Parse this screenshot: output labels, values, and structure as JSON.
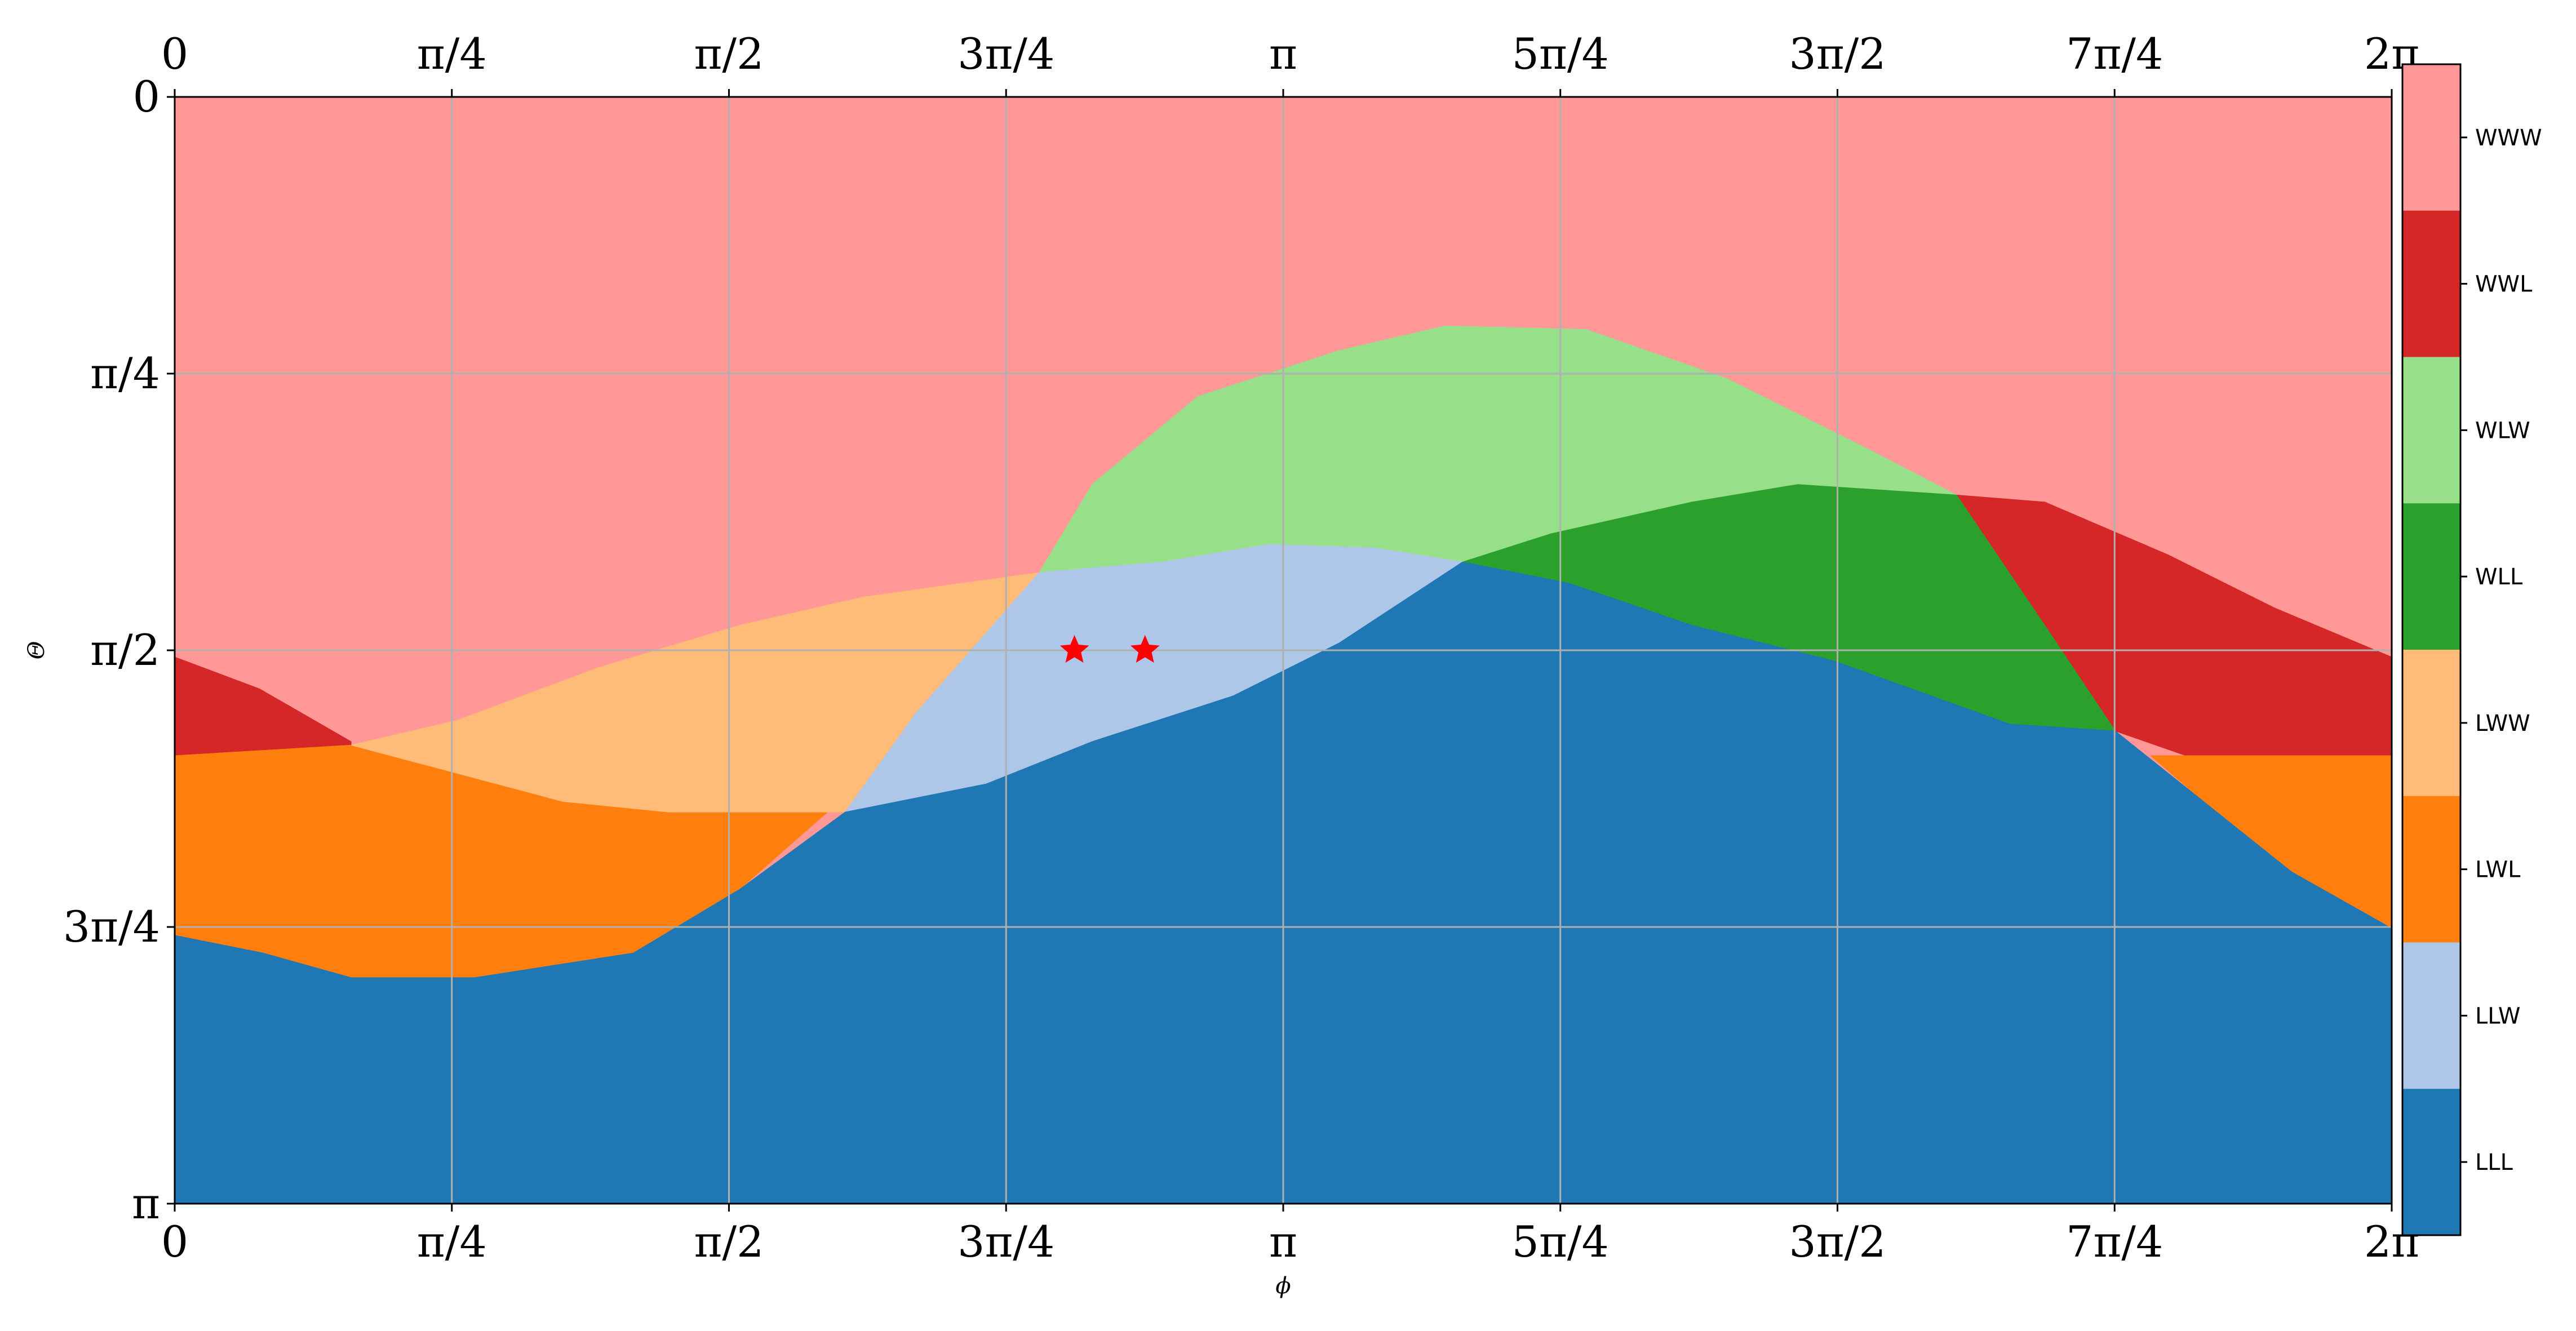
{
  "chart_data": {
    "type": "heatmap",
    "title": "",
    "xlabel": "ϕ",
    "ylabel": "Θ",
    "xlim": [
      0,
      6.2832
    ],
    "ylim": [
      0,
      3.1416
    ],
    "y_inverted": true,
    "grid": true,
    "x_ticks": [
      {
        "value": 0,
        "label": "0"
      },
      {
        "value": 0.7854,
        "label": "π/4"
      },
      {
        "value": 1.5708,
        "label": "π/2"
      },
      {
        "value": 2.3562,
        "label": "3π/4"
      },
      {
        "value": 3.1416,
        "label": "π"
      },
      {
        "value": 3.927,
        "label": "5π/4"
      },
      {
        "value": 4.7124,
        "label": "3π/2"
      },
      {
        "value": 5.4978,
        "label": "7π/4"
      },
      {
        "value": 6.2832,
        "label": "2π"
      }
    ],
    "y_ticks": [
      {
        "value": 0,
        "label": "0"
      },
      {
        "value": 0.7854,
        "label": "π/4"
      },
      {
        "value": 1.5708,
        "label": "π/2"
      },
      {
        "value": 2.3562,
        "label": "3π/4"
      },
      {
        "value": 3.1416,
        "label": "π"
      }
    ],
    "categories": [
      {
        "label": "WWW",
        "color": "#ff9896"
      },
      {
        "label": "WWL",
        "color": "#d62728"
      },
      {
        "label": "WLW",
        "color": "#98df8a"
      },
      {
        "label": "WLL",
        "color": "#2ca02c"
      },
      {
        "label": "LWW",
        "color": "#ffbb78"
      },
      {
        "label": "LWL",
        "color": "#ff7f0e"
      },
      {
        "label": "LLW",
        "color": "#aec7e8"
      },
      {
        "label": "LLL",
        "color": "#1f77b4"
      }
    ],
    "regions": [
      {
        "category": "WWW",
        "polygon": [
          [
            0,
            0
          ],
          [
            6.2832,
            0
          ],
          [
            6.2832,
            3.1416
          ],
          [
            0,
            3.1416
          ]
        ]
      },
      {
        "category": "WWL",
        "polygon": [
          [
            0,
            1.59
          ],
          [
            0.24,
            1.68
          ],
          [
            0.5,
            1.83
          ],
          [
            0.5,
            1.87
          ],
          [
            0,
            1.87
          ]
        ]
      },
      {
        "category": "WWL",
        "polygon": [
          [
            5.05,
            1.13
          ],
          [
            5.3,
            1.15
          ],
          [
            5.65,
            1.3
          ],
          [
            5.95,
            1.45
          ],
          [
            6.2832,
            1.59
          ],
          [
            6.2832,
            1.87
          ],
          [
            5.7,
            1.87
          ],
          [
            5.5,
            1.8
          ],
          [
            5.3,
            1.5
          ]
        ]
      },
      {
        "category": "LWL",
        "polygon": [
          [
            0,
            1.87
          ],
          [
            0.5,
            1.84
          ],
          [
            0.8,
            1.92
          ],
          [
            1.1,
            2.0
          ],
          [
            1.4,
            2.03
          ],
          [
            1.85,
            2.03
          ],
          [
            1.6,
            2.25
          ],
          [
            1.3,
            2.43
          ],
          [
            0.85,
            2.5
          ],
          [
            0.5,
            2.5
          ],
          [
            0.25,
            2.43
          ],
          [
            0,
            2.38
          ]
        ]
      },
      {
        "category": "LWL",
        "polygon": [
          [
            5.6,
            1.87
          ],
          [
            6.2832,
            1.87
          ],
          [
            6.2832,
            2.36
          ],
          [
            6.0,
            2.2
          ],
          [
            5.75,
            2.0
          ]
        ]
      },
      {
        "category": "LWW",
        "polygon": [
          [
            0.5,
            1.84
          ],
          [
            0.8,
            1.77
          ],
          [
            1.2,
            1.62
          ],
          [
            1.6,
            1.5
          ],
          [
            1.95,
            1.42
          ],
          [
            2.45,
            1.35
          ],
          [
            2.1,
            1.75
          ],
          [
            1.9,
            2.03
          ],
          [
            1.4,
            2.03
          ],
          [
            1.1,
            2.0
          ],
          [
            0.8,
            1.92
          ]
        ]
      },
      {
        "category": "WLW",
        "polygon": [
          [
            2.45,
            1.35
          ],
          [
            2.6,
            1.1
          ],
          [
            2.9,
            0.85
          ],
          [
            3.3,
            0.72
          ],
          [
            3.6,
            0.65
          ],
          [
            4.0,
            0.66
          ],
          [
            4.4,
            0.8
          ],
          [
            4.8,
            1.0
          ],
          [
            5.05,
            1.13
          ],
          [
            4.6,
            1.1
          ],
          [
            4.3,
            1.15
          ],
          [
            3.9,
            1.24
          ],
          [
            3.65,
            1.32
          ],
          [
            3.4,
            1.28
          ],
          [
            3.1,
            1.27
          ],
          [
            2.8,
            1.32
          ],
          [
            2.55,
            1.34
          ]
        ]
      },
      {
        "category": "WLL",
        "polygon": [
          [
            3.65,
            1.32
          ],
          [
            3.9,
            1.24
          ],
          [
            4.3,
            1.15
          ],
          [
            4.6,
            1.1
          ],
          [
            5.05,
            1.13
          ],
          [
            5.3,
            1.5
          ],
          [
            5.5,
            1.8
          ],
          [
            5.2,
            1.78
          ],
          [
            4.7,
            1.6
          ],
          [
            4.3,
            1.5
          ],
          [
            3.95,
            1.38
          ]
        ]
      },
      {
        "category": "LLW",
        "polygon": [
          [
            2.45,
            1.35
          ],
          [
            2.8,
            1.32
          ],
          [
            3.1,
            1.27
          ],
          [
            3.4,
            1.28
          ],
          [
            3.65,
            1.32
          ],
          [
            3.3,
            1.55
          ],
          [
            3.0,
            1.7
          ],
          [
            2.6,
            1.83
          ],
          [
            2.3,
            1.95
          ],
          [
            1.9,
            2.03
          ],
          [
            2.1,
            1.75
          ]
        ]
      },
      {
        "category": "LLL",
        "polygon": [
          [
            0,
            2.38
          ],
          [
            0.25,
            2.43
          ],
          [
            0.5,
            2.5
          ],
          [
            0.85,
            2.5
          ],
          [
            1.3,
            2.43
          ],
          [
            1.6,
            2.25
          ],
          [
            1.9,
            2.03
          ],
          [
            2.3,
            1.95
          ],
          [
            2.6,
            1.83
          ],
          [
            3.0,
            1.7
          ],
          [
            3.3,
            1.55
          ],
          [
            3.65,
            1.32
          ],
          [
            3.95,
            1.38
          ],
          [
            4.3,
            1.5
          ],
          [
            4.7,
            1.6
          ],
          [
            5.2,
            1.78
          ],
          [
            5.5,
            1.8
          ],
          [
            5.75,
            2.0
          ],
          [
            6.0,
            2.2
          ],
          [
            6.2832,
            2.36
          ],
          [
            6.2832,
            3.1416
          ],
          [
            0,
            3.1416
          ]
        ]
      }
    ],
    "markers": [
      {
        "x": 2.55,
        "y": 1.5708,
        "shape": "star",
        "color": "#ff0000"
      },
      {
        "x": 2.75,
        "y": 1.5708,
        "shape": "star",
        "color": "#ff0000"
      }
    ]
  }
}
